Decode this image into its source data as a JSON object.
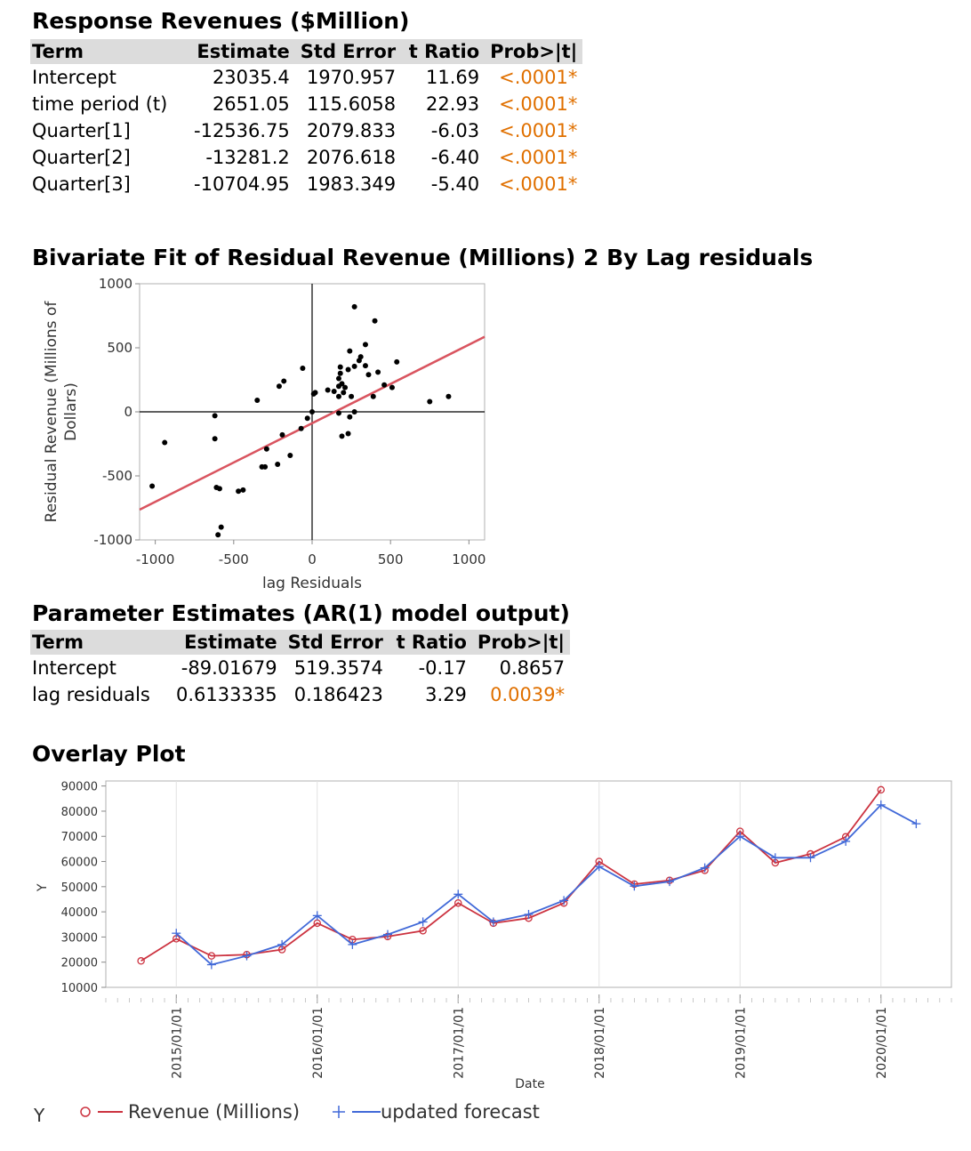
{
  "response_table": {
    "title": "Response Revenues ($Million)",
    "headers": [
      "Term",
      "Estimate",
      "Std Error",
      "t Ratio",
      "Prob>|t|"
    ],
    "rows": [
      {
        "term": "Intercept",
        "estimate": "23035.4",
        "std_error": "1970.957",
        "t_ratio": "11.69",
        "prob": "<.0001*",
        "significant": true
      },
      {
        "term": "time period (t)",
        "estimate": "2651.05",
        "std_error": "115.6058",
        "t_ratio": "22.93",
        "prob": "<.0001*",
        "significant": true
      },
      {
        "term": "Quarter[1]",
        "estimate": "-12536.75",
        "std_error": "2079.833",
        "t_ratio": "-6.03",
        "prob": "<.0001*",
        "significant": true
      },
      {
        "term": "Quarter[2]",
        "estimate": "-13281.2",
        "std_error": "2076.618",
        "t_ratio": "-6.40",
        "prob": "<.0001*",
        "significant": true
      },
      {
        "term": "Quarter[3]",
        "estimate": "-10704.95",
        "std_error": "1983.349",
        "t_ratio": "-5.40",
        "prob": "<.0001*",
        "significant": true
      }
    ]
  },
  "param_table": {
    "title": "Parameter Estimates (AR(1) model output)",
    "headers": [
      "Term",
      "Estimate",
      "Std Error",
      "t Ratio",
      "Prob>|t|"
    ],
    "rows": [
      {
        "term": "Intercept",
        "estimate": "-89.01679",
        "std_error": "519.3574",
        "t_ratio": "-0.17",
        "prob": "0.8657",
        "significant": false
      },
      {
        "term": "lag residuals",
        "estimate": "0.6133335",
        "std_error": "0.186423",
        "t_ratio": "3.29",
        "prob": "0.0039*",
        "significant": true
      }
    ]
  },
  "colors": {
    "significant": "#e07000",
    "fit_line": "#d9545f",
    "revenue": "#cc3340",
    "forecast": "#4169d8",
    "header_bg": "#dcdcdc"
  },
  "chart_data": [
    {
      "type": "scatter",
      "title": "Bivariate Fit of Residual Revenue (Millions) 2 By Lag residuals",
      "xlabel": "lag Residuals",
      "ylabel": "Residual Revenue (Millions of Dollars)",
      "xlim": [
        -1100,
        1100
      ],
      "ylim": [
        -1000,
        1000
      ],
      "xticks": [
        -1000,
        -500,
        0,
        500,
        1000
      ],
      "yticks": [
        -1000,
        -500,
        0,
        500,
        1000
      ],
      "fit_line": {
        "intercept": -89.01679,
        "slope": 0.6133335
      },
      "points": [
        [
          270,
          820
        ],
        [
          400,
          710
        ],
        [
          340,
          525
        ],
        [
          240,
          475
        ],
        [
          310,
          430
        ],
        [
          300,
          400
        ],
        [
          540,
          390
        ],
        [
          -60,
          340
        ],
        [
          180,
          350
        ],
        [
          230,
          330
        ],
        [
          270,
          355
        ],
        [
          340,
          360
        ],
        [
          420,
          310
        ],
        [
          360,
          290
        ],
        [
          180,
          300
        ],
        [
          -180,
          240
        ],
        [
          170,
          260
        ],
        [
          190,
          220
        ],
        [
          460,
          210
        ],
        [
          510,
          190
        ],
        [
          -210,
          200
        ],
        [
          170,
          200
        ],
        [
          210,
          190
        ],
        [
          100,
          170
        ],
        [
          20,
          150
        ],
        [
          10,
          140
        ],
        [
          140,
          160
        ],
        [
          200,
          150
        ],
        [
          250,
          120
        ],
        [
          390,
          120
        ],
        [
          170,
          120
        ],
        [
          -350,
          90
        ],
        [
          750,
          80
        ],
        [
          870,
          120
        ],
        [
          0,
          0
        ],
        [
          -30,
          -50
        ],
        [
          170,
          -10
        ],
        [
          240,
          -40
        ],
        [
          270,
          0
        ],
        [
          -70,
          -130
        ],
        [
          190,
          -190
        ],
        [
          230,
          -170
        ],
        [
          -190,
          -180
        ],
        [
          -620,
          -30
        ],
        [
          -290,
          -290
        ],
        [
          -140,
          -340
        ],
        [
          -620,
          -210
        ],
        [
          -940,
          -240
        ],
        [
          -220,
          -410
        ],
        [
          -300,
          -430
        ],
        [
          -320,
          -430
        ],
        [
          -610,
          -590
        ],
        [
          -590,
          -600
        ],
        [
          -440,
          -610
        ],
        [
          -470,
          -620
        ],
        [
          -1020,
          -580
        ],
        [
          -580,
          -900
        ],
        [
          -600,
          -960
        ]
      ]
    },
    {
      "type": "line",
      "title": "Overlay Plot",
      "xlabel": "Date",
      "ylabel": "Y",
      "ylim": [
        10000,
        92000
      ],
      "yticks": [
        10000,
        20000,
        30000,
        40000,
        50000,
        60000,
        70000,
        80000,
        90000
      ],
      "x_ticks": [
        "2015/01/01",
        "2016/01/01",
        "2017/01/01",
        "2018/01/01",
        "2019/01/01",
        "2020/01/01"
      ],
      "x_range": [
        "2014/07/01",
        "2020/07/01"
      ],
      "legend_label": "Y",
      "x": [
        "2014/10/01",
        "2015/01/01",
        "2015/04/01",
        "2015/07/01",
        "2015/10/01",
        "2016/01/01",
        "2016/04/01",
        "2016/07/01",
        "2016/10/01",
        "2017/01/01",
        "2017/04/01",
        "2017/07/01",
        "2017/10/01",
        "2018/01/01",
        "2018/04/01",
        "2018/07/01",
        "2018/10/01",
        "2019/01/01",
        "2019/04/01",
        "2019/07/01",
        "2019/10/01",
        "2020/01/01",
        "2020/04/01"
      ],
      "series": [
        {
          "name": "Revenue (Millions)",
          "marker": "circle",
          "values": [
            20500,
            29300,
            22500,
            23000,
            25000,
            35500,
            29000,
            30200,
            32500,
            43500,
            35500,
            37500,
            43500,
            60000,
            51000,
            52500,
            56500,
            72000,
            59500,
            63000,
            69800,
            88500,
            null
          ]
        },
        {
          "name": "updated forecast",
          "marker": "plus",
          "values": [
            null,
            31500,
            19000,
            22500,
            27000,
            38500,
            27000,
            31000,
            36000,
            47000,
            36000,
            39000,
            44500,
            58000,
            50200,
            52000,
            57500,
            70000,
            61500,
            61500,
            68000,
            82500,
            75000
          ]
        }
      ]
    }
  ]
}
